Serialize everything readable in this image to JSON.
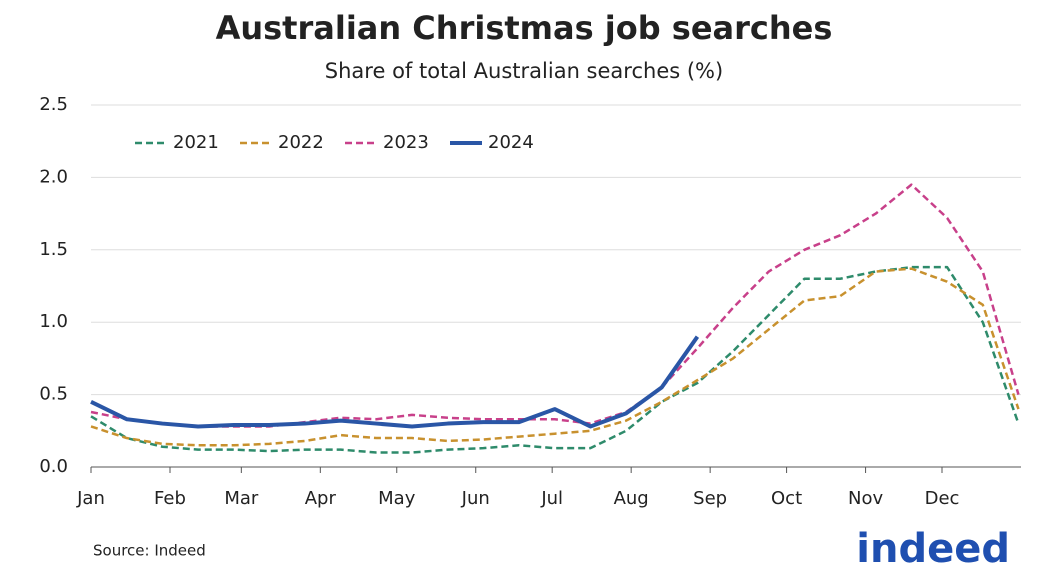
{
  "chart_data": {
    "type": "line",
    "title": "Australian Christmas job searches",
    "subtitle": "Share of total Australian searches (%)",
    "source": "Source: Indeed",
    "logo": "indeed",
    "x": [
      1,
      15,
      29,
      43,
      57,
      71,
      85,
      99,
      113,
      127,
      141,
      155,
      169,
      183,
      197,
      211,
      225,
      239,
      253,
      267,
      281,
      295,
      309,
      323,
      337,
      351,
      365
    ],
    "xlim": [
      1,
      366
    ],
    "xticks": [
      {
        "value": 1,
        "label": "Jan"
      },
      {
        "value": 32,
        "label": "Feb"
      },
      {
        "value": 60,
        "label": "Mar"
      },
      {
        "value": 91,
        "label": "Apr"
      },
      {
        "value": 121,
        "label": "May"
      },
      {
        "value": 152,
        "label": "Jun"
      },
      {
        "value": 182,
        "label": "Jul"
      },
      {
        "value": 213,
        "label": "Aug"
      },
      {
        "value": 244,
        "label": "Sep"
      },
      {
        "value": 274,
        "label": "Oct"
      },
      {
        "value": 305,
        "label": "Nov"
      },
      {
        "value": 335,
        "label": "Dec"
      }
    ],
    "ylim": [
      0,
      2.5
    ],
    "yticks": [
      {
        "value": 0,
        "label": "0.0"
      },
      0.5,
      {
        "value": 1,
        "label": "1.0"
      },
      1.5,
      {
        "value": 2,
        "label": "2.0"
      },
      2.5
    ],
    "grid": true,
    "legend": "top-left",
    "series": [
      {
        "name": "2021",
        "color": "#2e8b6b",
        "dash": true,
        "values": [
          0.35,
          0.2,
          0.14,
          0.12,
          0.12,
          0.11,
          0.12,
          0.12,
          0.1,
          0.1,
          0.12,
          0.13,
          0.15,
          0.13,
          0.13,
          0.25,
          0.45,
          0.58,
          0.8,
          1.05,
          1.3,
          1.3,
          1.35,
          1.38,
          1.38,
          1.0,
          0.3
        ]
      },
      {
        "name": "2022",
        "color": "#c8912e",
        "dash": true,
        "values": [
          0.28,
          0.2,
          0.16,
          0.15,
          0.15,
          0.16,
          0.18,
          0.22,
          0.2,
          0.2,
          0.18,
          0.19,
          0.21,
          0.23,
          0.25,
          0.32,
          0.45,
          0.6,
          0.75,
          0.95,
          1.15,
          1.18,
          1.35,
          1.37,
          1.28,
          1.12,
          0.4
        ]
      },
      {
        "name": "2023",
        "color": "#c8408a",
        "dash": true,
        "values": [
          0.38,
          0.33,
          0.3,
          0.28,
          0.28,
          0.28,
          0.31,
          0.34,
          0.33,
          0.36,
          0.34,
          0.33,
          0.33,
          0.33,
          0.3,
          0.38,
          0.55,
          0.82,
          1.1,
          1.35,
          1.5,
          1.6,
          1.75,
          1.95,
          1.72,
          1.35,
          0.5
        ]
      },
      {
        "name": "2024",
        "color": "#2a56a6",
        "dash": false,
        "values": [
          0.45,
          0.33,
          0.3,
          0.28,
          0.29,
          0.29,
          0.3,
          0.32,
          0.3,
          0.28,
          0.3,
          0.31,
          0.31,
          0.4,
          0.28,
          0.37,
          0.55,
          0.9,
          null,
          null,
          null,
          null,
          null,
          null,
          null,
          null,
          null
        ]
      }
    ]
  }
}
